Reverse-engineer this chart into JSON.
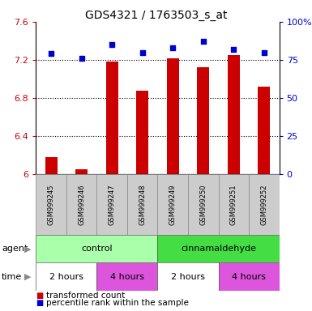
{
  "title": "GDS4321 / 1763503_s_at",
  "samples": [
    "GSM999245",
    "GSM999246",
    "GSM999247",
    "GSM999248",
    "GSM999249",
    "GSM999250",
    "GSM999251",
    "GSM999252"
  ],
  "bar_values": [
    6.18,
    6.05,
    7.18,
    6.88,
    7.22,
    7.12,
    7.25,
    6.92
  ],
  "dot_values": [
    79,
    76,
    85,
    80,
    83,
    87,
    82,
    80
  ],
  "ylim_left": [
    6.0,
    7.6
  ],
  "ylim_right": [
    0,
    100
  ],
  "yticks_left": [
    6.0,
    6.4,
    6.8,
    7.2,
    7.6
  ],
  "yticks_right": [
    0,
    25,
    50,
    75,
    100
  ],
  "ytick_labels_left": [
    "6",
    "6.4",
    "6.8",
    "7.2",
    "7.6"
  ],
  "ytick_labels_right": [
    "0",
    "25",
    "50",
    "75",
    "100%"
  ],
  "hlines": [
    6.4,
    6.8,
    7.2
  ],
  "bar_color": "#cc0000",
  "dot_color": "#0000cc",
  "agent_groups": [
    {
      "label": "control",
      "start": 0,
      "end": 4,
      "color": "#aaffaa"
    },
    {
      "label": "cinnamaldehyde",
      "start": 4,
      "end": 8,
      "color": "#44dd44"
    }
  ],
  "time_groups": [
    {
      "label": "2 hours",
      "start": 0,
      "end": 2,
      "color": "#ffffff"
    },
    {
      "label": "4 hours",
      "start": 2,
      "end": 4,
      "color": "#dd55dd"
    },
    {
      "label": "2 hours",
      "start": 4,
      "end": 6,
      "color": "#ffffff"
    },
    {
      "label": "4 hours",
      "start": 6,
      "end": 8,
      "color": "#dd55dd"
    }
  ],
  "legend_bar_label": "transformed count",
  "legend_dot_label": "percentile rank within the sample",
  "xlabel_agent": "agent",
  "xlabel_time": "time",
  "sample_box_color": "#cccccc",
  "axis_label_color_left": "#cc0000",
  "axis_label_color_right": "#0000cc",
  "bar_width": 0.4
}
